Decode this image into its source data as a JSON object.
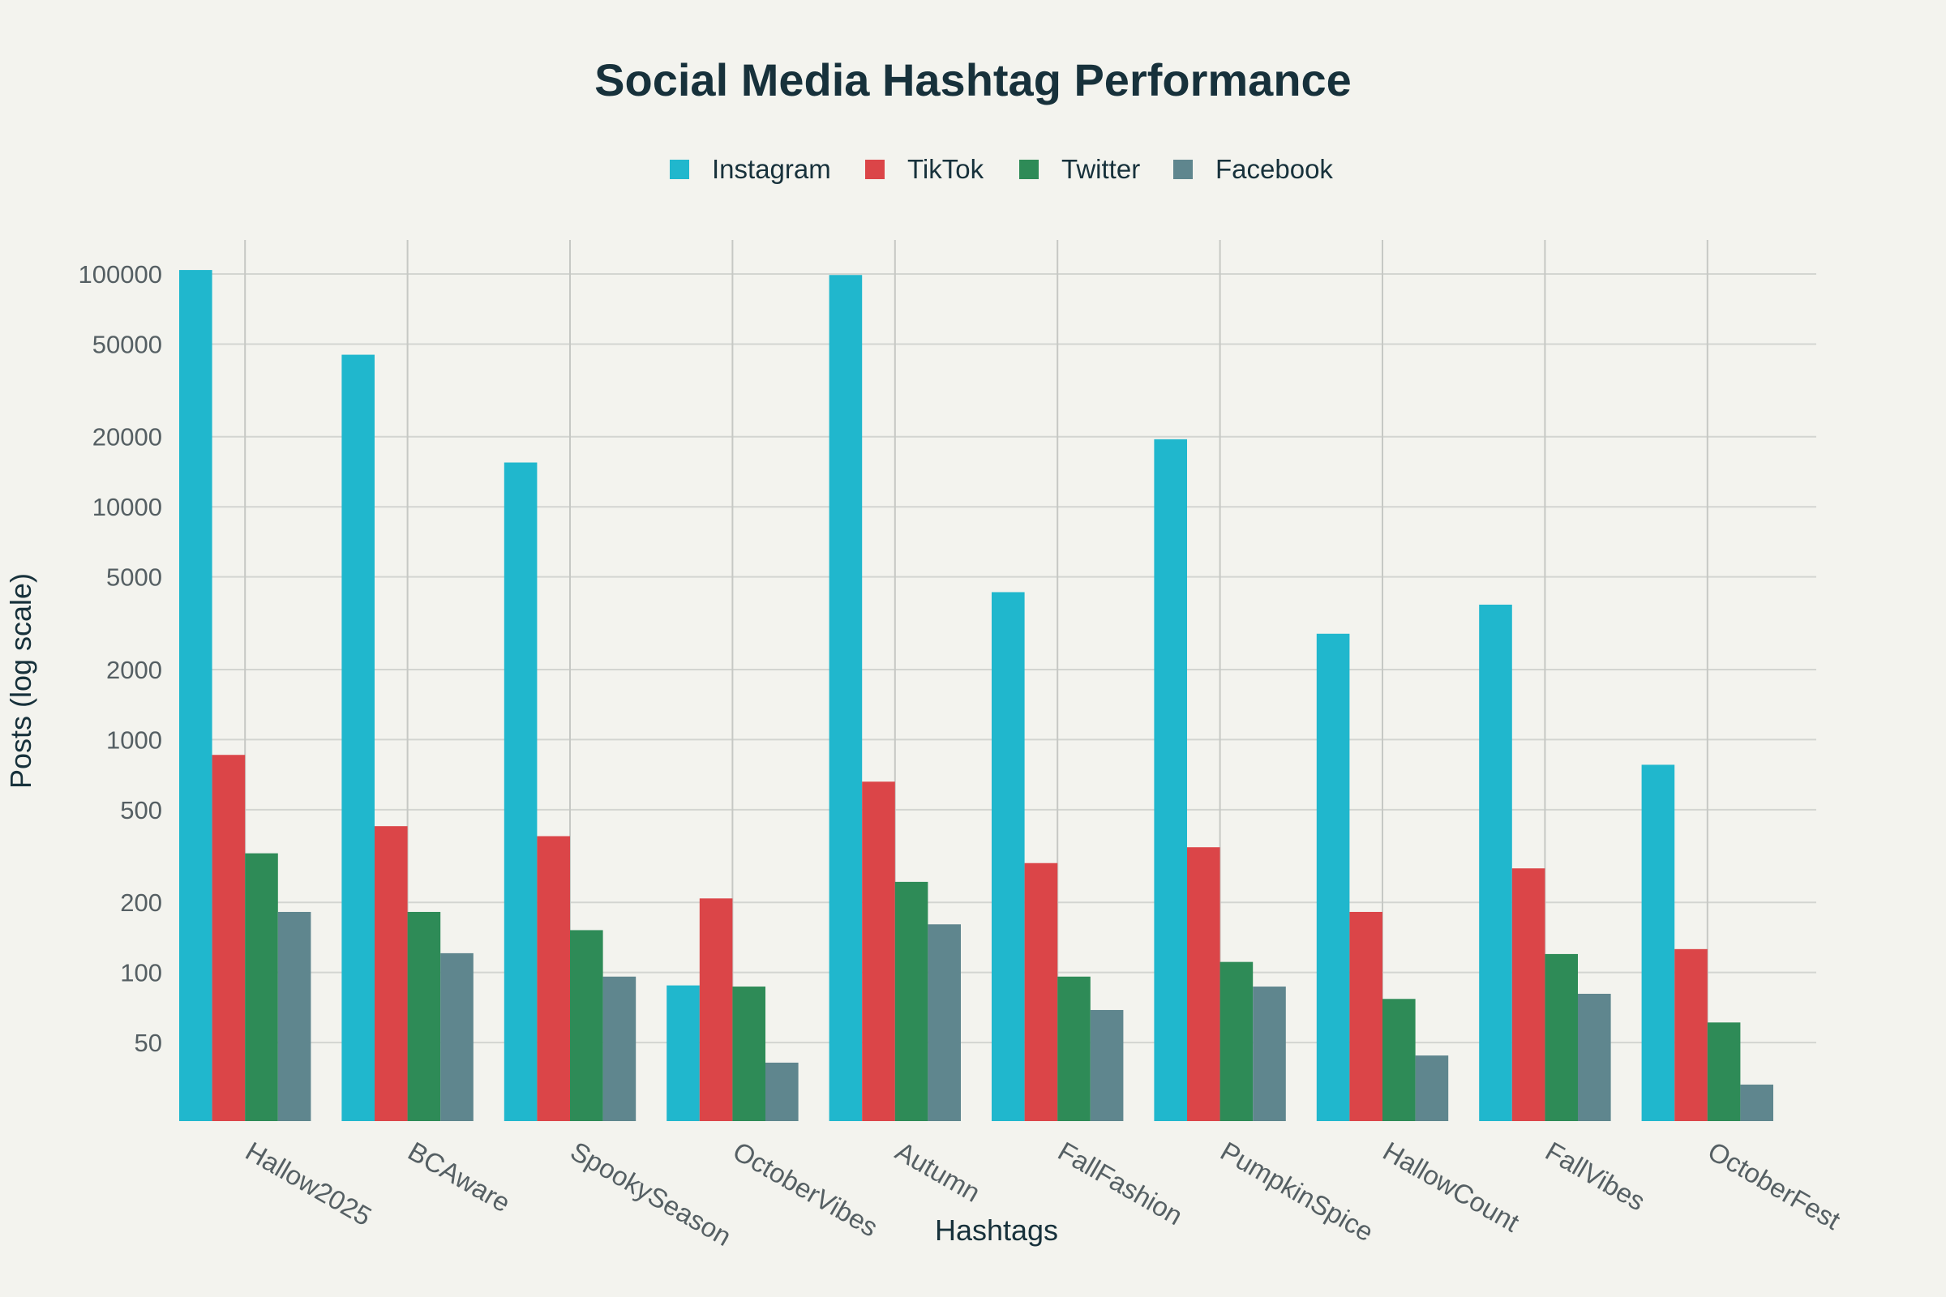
{
  "chart_data": {
    "type": "bar",
    "title": "Social Media Hashtag Performance",
    "xlabel": "Hashtags",
    "ylabel": "Posts (log scale)",
    "yscale": "log",
    "ylim": [
      23,
      140000
    ],
    "yticks": [
      50,
      100,
      200,
      500,
      1000,
      2000,
      5000,
      10000,
      20000,
      50000,
      100000
    ],
    "ytick_labels": [
      "50",
      "100",
      "200",
      "500",
      "1000",
      "2000",
      "5000",
      "10000",
      "20000",
      "50000",
      "100000"
    ],
    "grid": true,
    "legend_position": "top-center",
    "categories": [
      "Hallow2025",
      "BCAware",
      "SpookySeason",
      "OctoberVibes",
      "Autumn",
      "FallFashion",
      "PumpkinSpice",
      "HallowCount",
      "FallVibes",
      "OctoberFest"
    ],
    "series": [
      {
        "name": "Instagram",
        "color": "#20b7cd",
        "values": [
          104000,
          45000,
          15500,
          88,
          99000,
          4300,
          19500,
          2850,
          3800,
          780
        ]
      },
      {
        "name": "TikTok",
        "color": "#db4548",
        "values": [
          860,
          425,
          385,
          208,
          660,
          295,
          345,
          182,
          280,
          126
        ]
      },
      {
        "name": "Twitter",
        "color": "#2e8b57",
        "values": [
          325,
          182,
          152,
          87,
          245,
          96,
          111,
          77,
          120,
          61
        ]
      },
      {
        "name": "Facebook",
        "color": "#5f868e",
        "values": [
          182,
          121,
          96,
          41,
          161,
          69,
          87,
          44,
          81,
          33
        ]
      }
    ]
  }
}
